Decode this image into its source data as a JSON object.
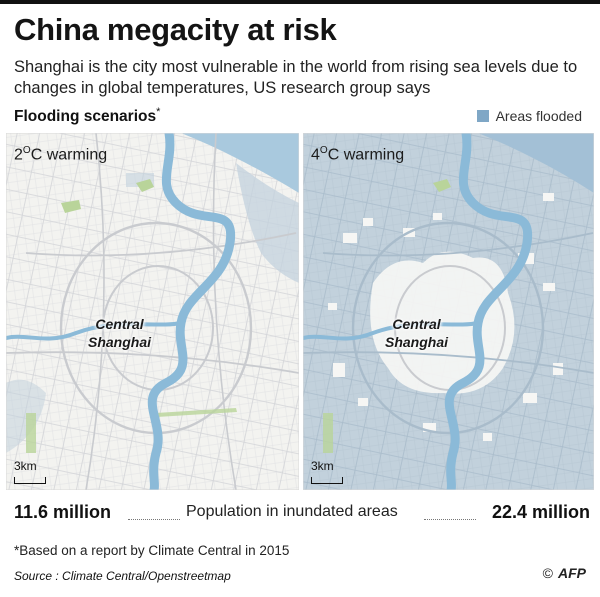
{
  "header": {
    "title": "China megacity at risk",
    "subtitle": "Shanghai is the city most vulnerable in the world from rising sea levels due to changes in global temperatures, US research group says",
    "scenarios_label": "Flooding scenarios",
    "scenarios_mark": "*"
  },
  "legend": {
    "label": "Areas flooded",
    "color": "#7fa7c6"
  },
  "maps": [
    {
      "scenario": "2",
      "scenario_rest": "C warming",
      "degree": "O",
      "place_line1": "Central",
      "place_line2": "Shanghai",
      "scale": "3km",
      "flooded_share": 0.15
    },
    {
      "scenario": "4",
      "scenario_rest": "C warming",
      "degree": "O",
      "place_line1": "Central",
      "place_line2": "Shanghai",
      "scale": "3km",
      "flooded_share": 0.85
    }
  ],
  "population": {
    "left_value": "11.6 million",
    "label": "Population in inundated areas",
    "right_value": "22.4 million"
  },
  "footnote": "*Based on a report by Climate Central in 2015",
  "source": "Source : Climate Central/Openstreetmap",
  "credit": {
    "symbol": "©",
    "agency": "AFP"
  },
  "colors": {
    "river": "#8bbad8",
    "land": "#f3f3f0",
    "flood": "#b9cad7",
    "road": "#cfd1d4",
    "sea": "#a9c9de",
    "park": "#b9d49a"
  }
}
